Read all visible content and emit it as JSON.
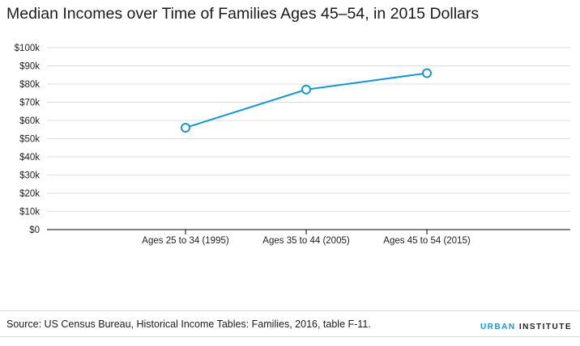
{
  "title": "Median Incomes over Time of Families Ages 45–54, in 2015 Dollars",
  "source": "Source: US Census Bureau, Historical Income Tables: Families, 2016, table F-11.",
  "brand": {
    "part1": "URBAN",
    "part2": "INSTITUTE"
  },
  "colors": {
    "line": "#1696d2",
    "grid": "#dedede",
    "axis": "#000000",
    "text": "#222222"
  },
  "chart_data": {
    "type": "line",
    "title": "Median Incomes over Time of Families Ages 45–54, in 2015 Dollars",
    "xlabel": "",
    "ylabel": "",
    "categories": [
      "Ages 25 to 34 (1995)",
      "Ages 35 to 44 (2005)",
      "Ages 45 to 54 (2015)"
    ],
    "series": [
      {
        "values": [
          56000,
          77000,
          86000
        ]
      }
    ],
    "ylim": [
      0,
      100000
    ],
    "yticks": [
      0,
      10000,
      20000,
      30000,
      40000,
      50000,
      60000,
      70000,
      80000,
      90000,
      100000
    ],
    "ytick_labels": [
      "$0",
      "$10k",
      "$20k",
      "$30k",
      "$40k",
      "$50k",
      "$60k",
      "$70k",
      "$80k",
      "$90k",
      "$100k"
    ],
    "grid": true,
    "legend": "none"
  }
}
